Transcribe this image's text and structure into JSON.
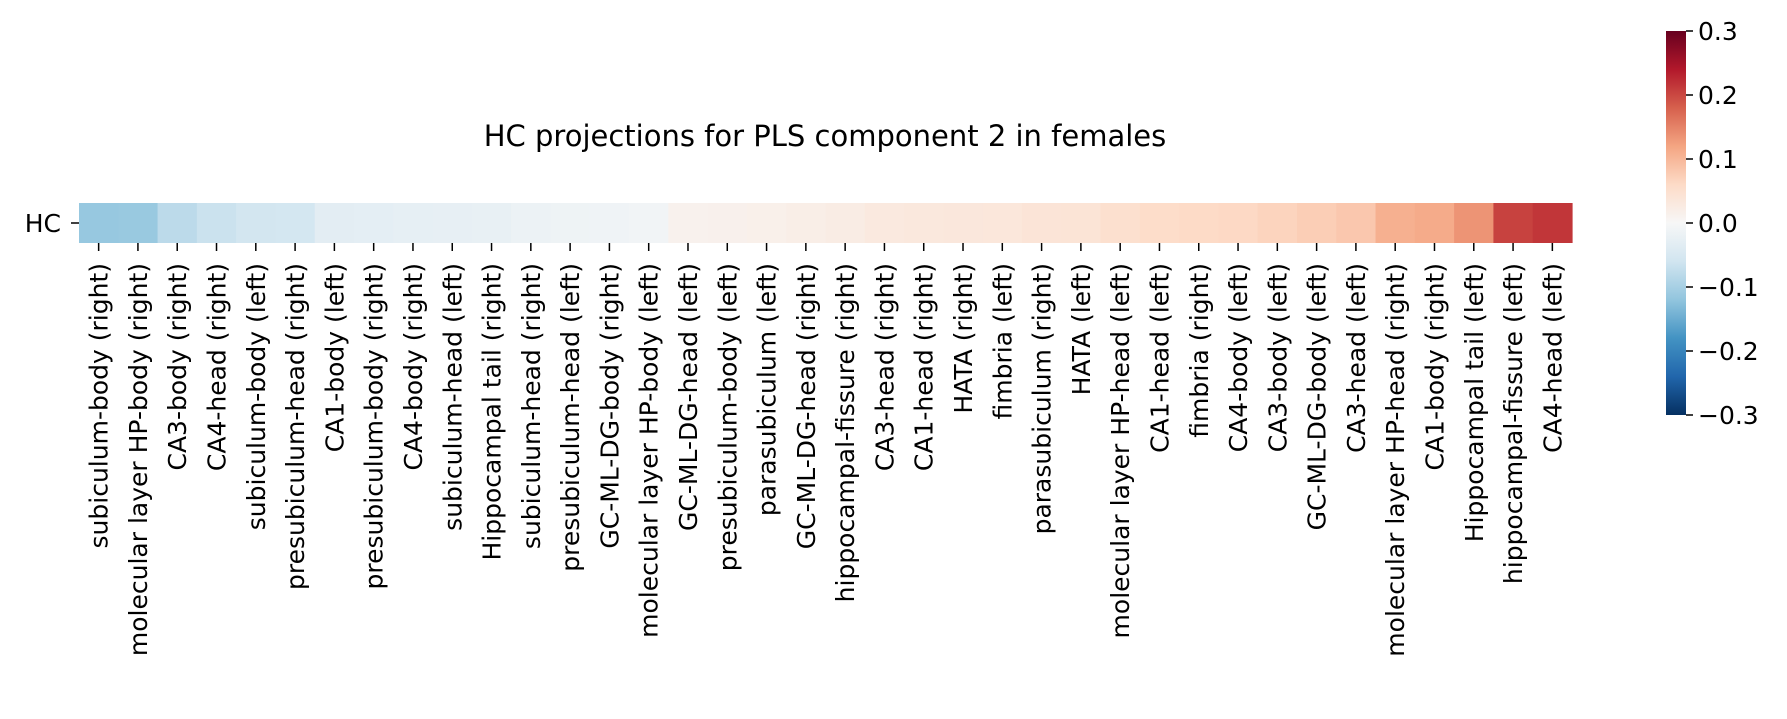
{
  "chart_data": {
    "type": "heatmap",
    "title": "HC projections for PLS component 2 in females",
    "xlabel": "",
    "ylabel": "",
    "row_labels": [
      "HC"
    ],
    "categories": [
      "subiculum-body (right)",
      "molecular layer HP-body (right)",
      "CA3-body (right)",
      "CA4-head (right)",
      "subiculum-body (left)",
      "presubiculum-head (right)",
      "CA1-body (left)",
      "presubiculum-body (right)",
      "CA4-body (right)",
      "subiculum-head (left)",
      "Hippocampal tail (right)",
      "subiculum-head (right)",
      "presubiculum-head (left)",
      "GC-ML-DG-body (right)",
      "molecular layer HP-body (left)",
      "GC-ML-DG-head (left)",
      "presubiculum-body (left)",
      "parasubiculum (left)",
      "GC-ML-DG-head (right)",
      "hippocampal-fissure (right)",
      "CA3-head (right)",
      "CA1-head (right)",
      "HATA (right)",
      "fimbria (left)",
      "parasubiculum (right)",
      "HATA (left)",
      "molecular layer HP-head (left)",
      "CA1-head (left)",
      "fimbria (right)",
      "CA4-body (left)",
      "CA3-body (left)",
      "GC-ML-DG-body (left)",
      "CA3-head (left)",
      "molecular layer HP-head (right)",
      "CA1-body (right)",
      "Hippocampal tail (left)",
      "hippocampal-fissure (left)",
      "CA4-head (left)"
    ],
    "values": [
      [
        -0.115,
        -0.113,
        -0.08,
        -0.066,
        -0.057,
        -0.055,
        -0.032,
        -0.03,
        -0.027,
        -0.026,
        -0.024,
        -0.017,
        -0.015,
        -0.012,
        -0.01,
        0.012,
        0.014,
        0.016,
        0.02,
        0.024,
        0.03,
        0.032,
        0.034,
        0.035,
        0.04,
        0.041,
        0.05,
        0.056,
        0.06,
        0.062,
        0.068,
        0.075,
        0.082,
        0.108,
        0.113,
        0.135,
        0.205,
        0.215
      ]
    ],
    "colormap": "RdBu_r",
    "vmin": -0.3,
    "vmax": 0.3,
    "colorbar_ticks": [
      "0.3",
      "0.2",
      "0.1",
      "0.0",
      "−0.1",
      "−0.2",
      "−0.3"
    ],
    "colorbar_tick_values": [
      0.3,
      0.2,
      0.1,
      0.0,
      -0.1,
      -0.2,
      -0.3
    ]
  }
}
